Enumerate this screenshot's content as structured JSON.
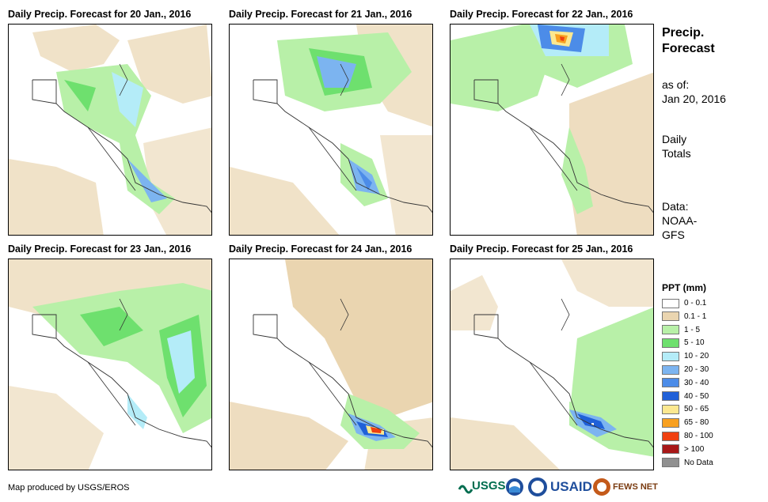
{
  "panels": [
    {
      "title": "Daily Precip. Forecast for 20 Jan., 2016"
    },
    {
      "title": "Daily Precip. Forecast for 21 Jan., 2016"
    },
    {
      "title": "Daily Precip. Forecast for 22 Jan., 2016"
    },
    {
      "title": "Daily Precip. Forecast for 23 Jan., 2016"
    },
    {
      "title": "Daily Precip. Forecast for 24 Jan., 2016"
    },
    {
      "title": "Daily Precip. Forecast for 25 Jan., 2016"
    }
  ],
  "sidebar": {
    "title_line1": "Precip.",
    "title_line2": "Forecast",
    "asof_line1": "as of:",
    "asof_line2": "Jan 20, 2016",
    "daily_line1": "Daily",
    "daily_line2": "Totals",
    "data_line1": "Data:",
    "data_line2": "NOAA-",
    "data_line3": "GFS"
  },
  "legend": {
    "title": "PPT (mm)",
    "items": [
      {
        "label": "0 - 0.1",
        "color": "#ffffff"
      },
      {
        "label": "0.1 - 1",
        "color": "#ead5b0"
      },
      {
        "label": "1 - 5",
        "color": "#b8f0a8"
      },
      {
        "label": "5 - 10",
        "color": "#6ee06e"
      },
      {
        "label": "10 - 20",
        "color": "#b4ecf8"
      },
      {
        "label": "20 - 30",
        "color": "#7cb4f0"
      },
      {
        "label": "30 - 40",
        "color": "#4c8ce8"
      },
      {
        "label": "40 - 50",
        "color": "#2060d8"
      },
      {
        "label": "50 - 65",
        "color": "#fce890"
      },
      {
        "label": "65 - 80",
        "color": "#f8a020"
      },
      {
        "label": "80 - 100",
        "color": "#f04010"
      },
      {
        "label": "> 100",
        "color": "#a81818"
      },
      {
        "label": "No Data",
        "color": "#909090"
      }
    ]
  },
  "footer": {
    "credit": "Map produced by USGS/EROS"
  },
  "logos": {
    "usgs": "USGS",
    "usaid": "USAID",
    "fews": "FEWS NET"
  }
}
